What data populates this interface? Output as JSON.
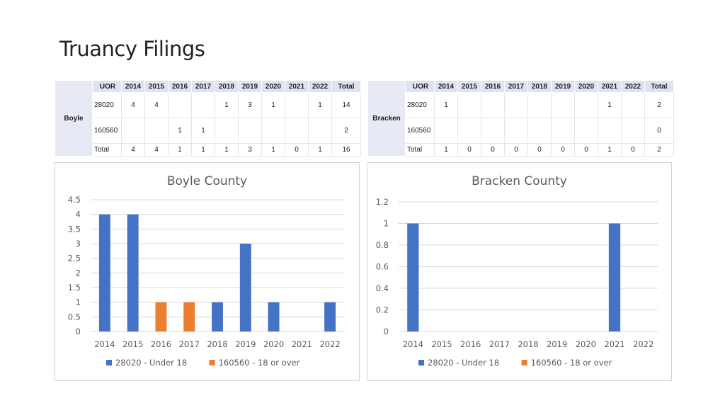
{
  "page_title": "Truancy Filings",
  "tables": [
    {
      "county": "Boyle",
      "header": [
        "UOR",
        "2014",
        "2015",
        "2016",
        "2017",
        "2018",
        "2019",
        "2020",
        "2021",
        "2022",
        "Total"
      ],
      "rows": [
        [
          "28020",
          "4",
          "4",
          "",
          "",
          "1",
          "3",
          "1",
          "",
          "1",
          "14"
        ],
        [
          "160560",
          "",
          "",
          "1",
          "1",
          "",
          "",
          "",
          "",
          "",
          "2"
        ],
        [
          "Total",
          "4",
          "4",
          "1",
          "1",
          "1",
          "3",
          "1",
          "0",
          "1",
          "16"
        ]
      ]
    },
    {
      "county": "Bracken",
      "header": [
        "UOR",
        "2014",
        "2015",
        "2016",
        "2017",
        "2018",
        "2019",
        "2020",
        "2021",
        "2022",
        "Total"
      ],
      "rows": [
        [
          "28020",
          "1",
          "",
          "",
          "",
          "",
          "",
          "",
          "1",
          "",
          "2"
        ],
        [
          "160560",
          "",
          "",
          "",
          "",
          "",
          "",
          "",
          "",
          "",
          "0"
        ],
        [
          "Total",
          "1",
          "0",
          "0",
          "0",
          "0",
          "0",
          "0",
          "1",
          "0",
          "2"
        ]
      ]
    }
  ],
  "chart_data": [
    {
      "type": "bar",
      "title": "Boyle County",
      "categories": [
        "2014",
        "2015",
        "2016",
        "2017",
        "2018",
        "2019",
        "2020",
        "2021",
        "2022"
      ],
      "series": [
        {
          "name": "28020 - Under 18",
          "color": "#4472c4",
          "values": [
            4,
            4,
            null,
            null,
            1,
            3,
            1,
            null,
            1
          ]
        },
        {
          "name": "160560 - 18 or over",
          "color": "#ed7d31",
          "values": [
            null,
            null,
            1,
            1,
            null,
            null,
            null,
            null,
            null
          ]
        }
      ],
      "yticks": [
        "0",
        "0.5",
        "1",
        "1.5",
        "2",
        "2.5",
        "3",
        "3.5",
        "4",
        "4.5"
      ],
      "ylim": [
        0,
        4.5
      ],
      "grid": true,
      "legend": "bottom"
    },
    {
      "type": "bar",
      "title": "Bracken County",
      "categories": [
        "2014",
        "2015",
        "2016",
        "2017",
        "2018",
        "2019",
        "2020",
        "2021",
        "2022"
      ],
      "series": [
        {
          "name": "28020 - Under 18",
          "color": "#4472c4",
          "values": [
            1,
            null,
            null,
            null,
            null,
            null,
            null,
            1,
            null
          ]
        },
        {
          "name": "160560 - 18 or over",
          "color": "#ed7d31",
          "values": [
            null,
            null,
            null,
            null,
            null,
            null,
            null,
            null,
            null
          ]
        }
      ],
      "yticks": [
        "0",
        "0.2",
        "0.4",
        "0.6",
        "0.8",
        "1",
        "1.2"
      ],
      "ylim": [
        0,
        1.2
      ],
      "grid": true,
      "legend": "bottom"
    }
  ]
}
